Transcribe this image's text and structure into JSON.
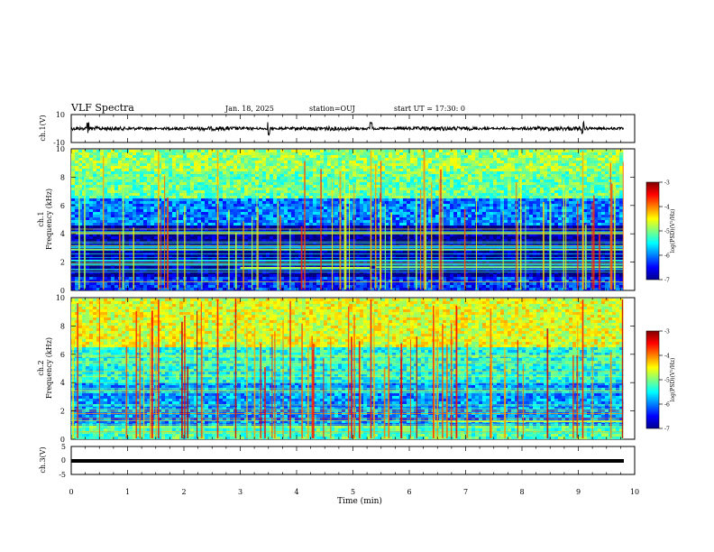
{
  "header": {
    "title": "VLF Spectra",
    "date": "Jan. 18, 2025",
    "station": "station=OUJ",
    "start": "start UT =  17:30: 0"
  },
  "chart_data": [
    {
      "type": "line",
      "name": "ch1-waveform",
      "ylabel": "ch.1(V)",
      "ylim": [
        -10,
        10
      ],
      "yticks": [
        "10",
        "-10"
      ],
      "xlim": [
        0,
        10
      ],
      "x_end": 9.8,
      "description_values": {
        "baseline": 0,
        "spikes_min": [
          0.3,
          3.5,
          5.32,
          9.08
        ]
      }
    },
    {
      "type": "heatmap",
      "name": "ch1-spectrogram",
      "ylabel": "ch.1 Frequency (kHz)",
      "ylim": [
        0,
        10
      ],
      "yticks": [
        "0",
        "2",
        "4",
        "6",
        "8",
        "10"
      ],
      "xlim": [
        0,
        10
      ],
      "x_end": 9.8,
      "colorbar": {
        "label": "log(PSD)(V²/Hz)",
        "range": [
          -7,
          -3
        ],
        "ticks": [
          "-3",
          "-4",
          "-5",
          "-6",
          "-7"
        ]
      },
      "bands_logpsd": [
        {
          "f": [
            0,
            1
          ],
          "level": -6.3
        },
        {
          "f": [
            1,
            4.5
          ],
          "level": -6.9
        },
        {
          "f": [
            4.5,
            6.5
          ],
          "level": -6.0
        },
        {
          "f": [
            6.5,
            8.5
          ],
          "level": -5.1
        },
        {
          "f": [
            8.5,
            10
          ],
          "level": -4.9
        }
      ]
    },
    {
      "type": "heatmap",
      "name": "ch2-spectrogram",
      "ylabel": "ch.2 Frequency (kHz)",
      "ylim": [
        0,
        10
      ],
      "yticks": [
        "0",
        "2",
        "4",
        "6",
        "8",
        "10"
      ],
      "xlim": [
        0,
        10
      ],
      "x_end": 9.8,
      "colorbar": {
        "label": "log(PSD)(V²/Hz)",
        "range": [
          -7,
          -3
        ],
        "ticks": [
          "-3",
          "-4",
          "-5",
          "-6",
          "-7"
        ]
      },
      "bands_logpsd": [
        {
          "f": [
            0,
            1
          ],
          "level": -5.2
        },
        {
          "f": [
            1,
            4
          ],
          "level": -5.9
        },
        {
          "f": [
            4,
            6.5
          ],
          "level": -5.4
        },
        {
          "f": [
            6.5,
            10
          ],
          "level": -4.6
        }
      ]
    },
    {
      "type": "line",
      "name": "ch3-waveform",
      "ylabel": "ch.3(V)",
      "ylim": [
        -5,
        5
      ],
      "yticks": [
        "5",
        "0",
        "-5"
      ],
      "xlim": [
        0,
        10
      ],
      "x_end": 9.8,
      "xlabel": "Time (min)",
      "xticks": [
        "0",
        "1",
        "2",
        "3",
        "4",
        "5",
        "6",
        "7",
        "8",
        "9",
        "10"
      ],
      "constant_value": 0
    }
  ]
}
